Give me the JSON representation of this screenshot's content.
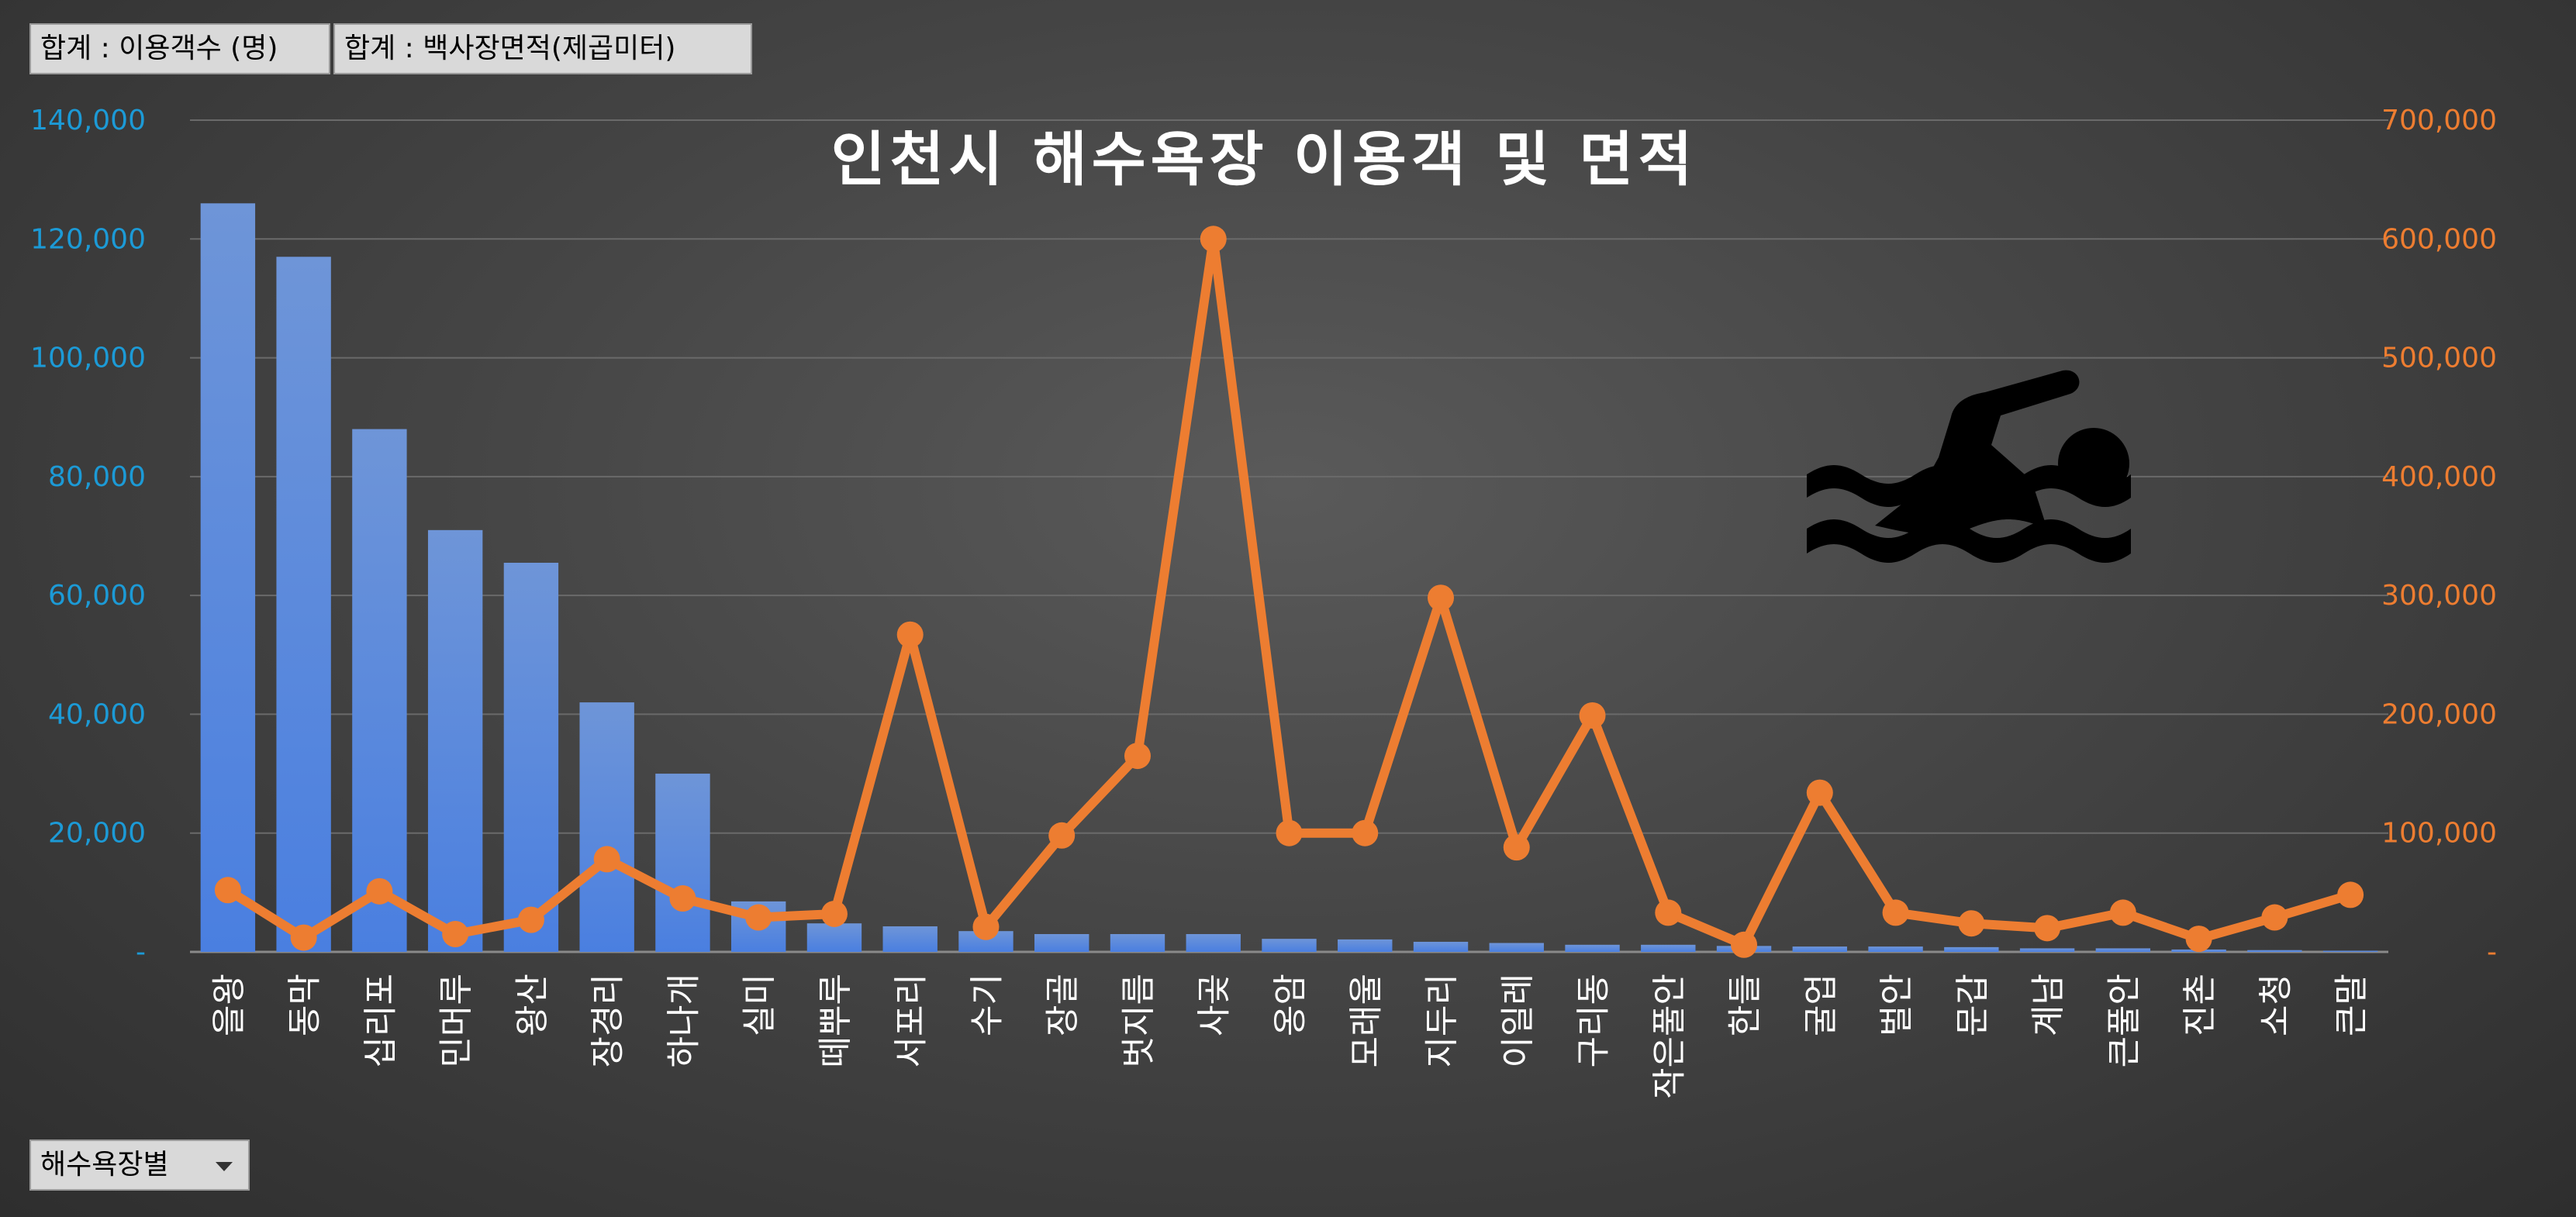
{
  "pivot": {
    "field_buttons": [
      "합계 : 이용객수 (명)",
      "합계 : 백사장면적(제곱미터)"
    ],
    "filter_label": "해수욕장별"
  },
  "colors": {
    "bar": "#4a7fe0",
    "line": "#ed7d31",
    "left_axis": "#1c9ad6",
    "right_axis": "#ed7d31",
    "gridline": "#6a6a6a"
  },
  "icons": [
    "swimmer-icon",
    "dropdown-arrow-icon"
  ],
  "chart_data": {
    "type": "bar",
    "title": "인천시 해수욕장 이용객 및 면적",
    "categories": [
      "을왕",
      "동막",
      "십리포",
      "민머루",
      "왕산",
      "장경리",
      "하나개",
      "실미",
      "떼뿌루",
      "서포리",
      "수기",
      "장골",
      "벗지름",
      "사곶",
      "옹암",
      "모래울",
      "지두리",
      "이일레",
      "구리동",
      "작은풀안",
      "한들",
      "굴업",
      "벌안",
      "문갑",
      "계남",
      "큰풀안",
      "진촌",
      "소청",
      "큰말"
    ],
    "series": [
      {
        "name": "합계 : 이용객수 (명)",
        "type": "bar",
        "axis": "left",
        "values": [
          126000,
          117000,
          88000,
          71000,
          65500,
          42000,
          30000,
          8500,
          4800,
          4300,
          3500,
          3000,
          3000,
          3000,
          2200,
          2100,
          1700,
          1500,
          1200,
          1200,
          1000,
          900,
          900,
          800,
          600,
          600,
          400,
          300,
          200
        ]
      },
      {
        "name": "합계 : 백사장면적(제곱미터)",
        "type": "line",
        "axis": "right",
        "values": [
          52000,
          12000,
          51000,
          15000,
          27000,
          78000,
          45000,
          29000,
          32000,
          267000,
          21000,
          98000,
          165000,
          600000,
          100000,
          100000,
          298000,
          88000,
          199000,
          33000,
          6000,
          134000,
          33000,
          24000,
          20000,
          33000,
          11000,
          29000,
          48000
        ]
      }
    ],
    "y_left": {
      "min": 0,
      "max": 140000,
      "ticks": [
        "-",
        "20,000",
        "40,000",
        "60,000",
        "80,000",
        "100,000",
        "120,000",
        "140,000"
      ]
    },
    "y_right": {
      "min": 0,
      "max": 700000,
      "ticks": [
        "-",
        "100,000",
        "200,000",
        "300,000",
        "400,000",
        "500,000",
        "600,000",
        "700,000"
      ]
    },
    "grid": true,
    "legend": "none"
  }
}
